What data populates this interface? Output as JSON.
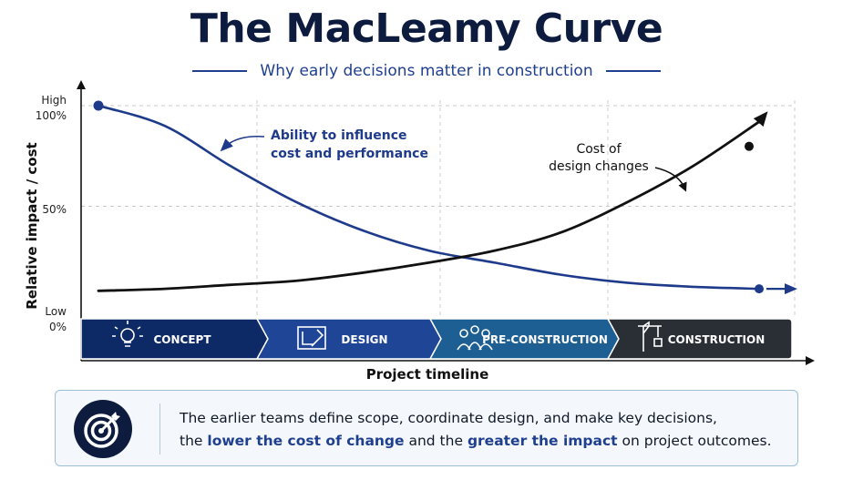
{
  "header": {
    "title": "The MacLeamy Curve",
    "subtitle": "Why early decisions matter in construction"
  },
  "chart_data": {
    "type": "line",
    "title": "The MacLeamy Curve",
    "subtitle": "Why early decisions matter in construction",
    "xlabel": "Project timeline",
    "ylabel": "Relative impact / cost",
    "y_ticks": [
      {
        "value": 100,
        "label": "High",
        "sublabel": "100%"
      },
      {
        "value": 50,
        "label": "50%",
        "sublabel": ""
      },
      {
        "value": 0,
        "label": "Low",
        "sublabel": "0%"
      }
    ],
    "ylim": [
      0,
      100
    ],
    "xlim": [
      0,
      100
    ],
    "grid": true,
    "phases": [
      {
        "label": "CONCEPT",
        "icon": "lightbulb-icon",
        "color": "#0d2a66"
      },
      {
        "label": "DESIGN",
        "icon": "blueprint-icon",
        "color": "#1e4596"
      },
      {
        "label": "PRE-CONSTRUCTION",
        "icon": "team-icon",
        "color": "#1e5f93"
      },
      {
        "label": "CONSTRUCTION",
        "icon": "crane-icon",
        "color": "#2a2f36"
      }
    ],
    "series": [
      {
        "name": "Ability to influence cost and performance",
        "color": "#1e3a8a",
        "x": [
          0,
          10,
          20,
          30,
          40,
          50,
          60,
          70,
          80,
          90,
          100
        ],
        "y": [
          100,
          90,
          70,
          52,
          38,
          28,
          22,
          16,
          12,
          10,
          9
        ]
      },
      {
        "name": "Cost of design changes",
        "color": "#111111",
        "x": [
          0,
          10,
          20,
          30,
          40,
          50,
          60,
          70,
          80,
          90,
          100
        ],
        "y": [
          8,
          9,
          11,
          13,
          17,
          22,
          28,
          37,
          52,
          70,
          92
        ]
      }
    ],
    "annotations": [
      {
        "text": "Ability to influence\ncost and performance",
        "series": 0
      },
      {
        "text": "Cost of\ndesign changes",
        "series": 1
      }
    ]
  },
  "callout": {
    "icon": "target-icon",
    "line1": "The earlier teams define scope, coordinate design, and make key decisions,",
    "line2_a": "the ",
    "line2_hl1": "lower the cost of change",
    "line2_b": " and the ",
    "line2_hl2": "greater the impact",
    "line2_c": " on project outcomes."
  }
}
